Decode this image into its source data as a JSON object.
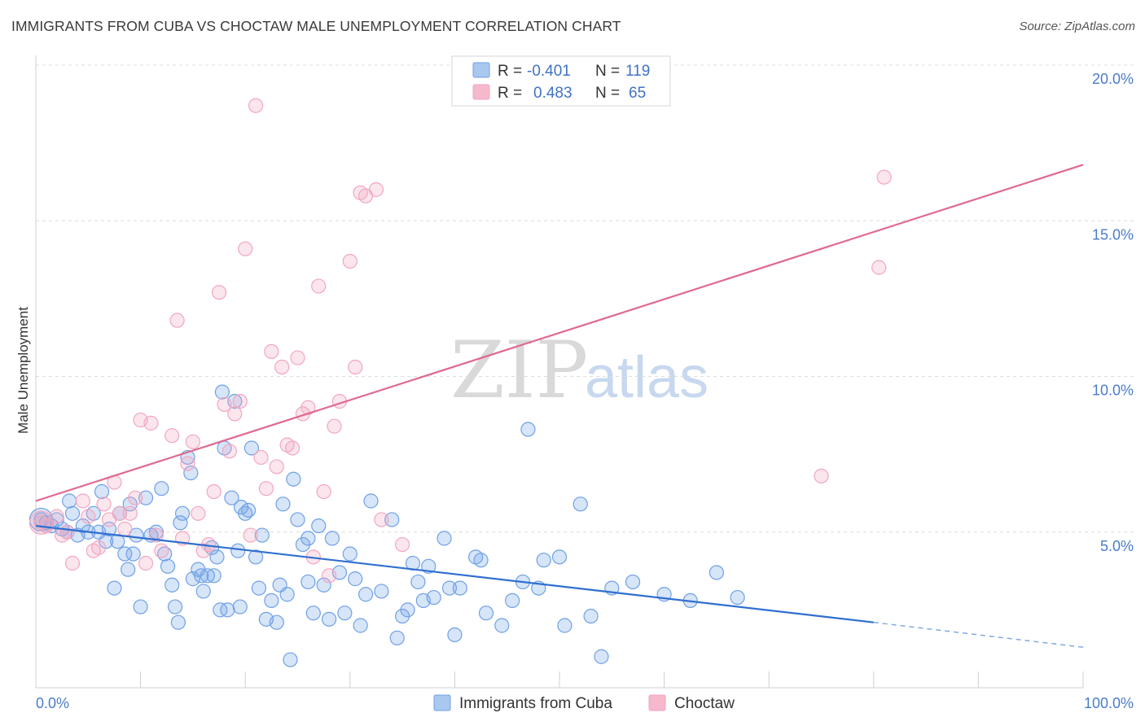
{
  "header": {
    "title": "IMMIGRANTS FROM CUBA VS CHOCTAW MALE UNEMPLOYMENT CORRELATION CHART",
    "source": "Source: ZipAtlas.com"
  },
  "watermark": {
    "zip": "ZIP",
    "atlas": "atlas"
  },
  "legend": {
    "rows": [
      {
        "r_label": "R =",
        "r_value": "-0.401",
        "n_label": "N =",
        "n_value": "119",
        "color": "#a9c8f0"
      },
      {
        "r_label": "R =",
        "r_value": "0.483",
        "n_label": "N =",
        "n_value": "65",
        "color": "#f6b8cb"
      }
    ]
  },
  "chart_data": {
    "type": "scatter",
    "title": "IMMIGRANTS FROM CUBA VS CHOCTAW MALE UNEMPLOYMENT CORRELATION CHART",
    "xlabel": "",
    "ylabel": "Male Unemployment",
    "xlim": [
      0,
      100
    ],
    "ylim": [
      0,
      20
    ],
    "x_tick_labels": [
      "0.0%",
      "100.0%"
    ],
    "y_tick_labels": [
      "5.0%",
      "10.0%",
      "15.0%",
      "20.0%"
    ],
    "y_tick_values": [
      5,
      10,
      15,
      20
    ],
    "grid": "horizontal dashed",
    "legend_position": "bottom-center",
    "series": [
      {
        "name": "Immigrants from Cuba",
        "color": "#6fa1e6",
        "line_color": "#2f6fd0",
        "trend": {
          "x": [
            0,
            80
          ],
          "y": [
            5.2,
            2.1
          ],
          "extended_to": [
            100,
            1.3
          ]
        },
        "points": [
          [
            0.5,
            5.4
          ],
          [
            1,
            5.3
          ],
          [
            1.5,
            5.2
          ],
          [
            2,
            5.4
          ],
          [
            2.5,
            5.1
          ],
          [
            3,
            5.0
          ],
          [
            3.5,
            5.6
          ],
          [
            3.2,
            6.0
          ],
          [
            4,
            4.9
          ],
          [
            4.5,
            5.2
          ],
          [
            5,
            5.0
          ],
          [
            5.5,
            5.6
          ],
          [
            6,
            5.0
          ],
          [
            6.3,
            6.3
          ],
          [
            6.7,
            4.7
          ],
          [
            7,
            5.1
          ],
          [
            7.5,
            3.2
          ],
          [
            7.8,
            4.7
          ],
          [
            8,
            5.6
          ],
          [
            8.5,
            4.3
          ],
          [
            8.8,
            3.8
          ],
          [
            9,
            5.9
          ],
          [
            9.3,
            4.3
          ],
          [
            9.6,
            4.9
          ],
          [
            10,
            2.6
          ],
          [
            10.5,
            6.1
          ],
          [
            11,
            4.9
          ],
          [
            11.5,
            5.0
          ],
          [
            12,
            6.4
          ],
          [
            12.3,
            4.3
          ],
          [
            12.6,
            3.9
          ],
          [
            13,
            3.3
          ],
          [
            13.3,
            2.6
          ],
          [
            13.6,
            2.1
          ],
          [
            13.8,
            5.3
          ],
          [
            14,
            5.6
          ],
          [
            14.5,
            7.4
          ],
          [
            14.8,
            6.9
          ],
          [
            15,
            3.5
          ],
          [
            15.5,
            3.8
          ],
          [
            15.8,
            3.6
          ],
          [
            16,
            3.1
          ],
          [
            16.4,
            3.6
          ],
          [
            16.8,
            4.5
          ],
          [
            17,
            3.6
          ],
          [
            17.3,
            4.2
          ],
          [
            17.6,
            2.5
          ],
          [
            17.8,
            9.5
          ],
          [
            18,
            7.7
          ],
          [
            18.3,
            2.5
          ],
          [
            18.7,
            6.1
          ],
          [
            19,
            9.2
          ],
          [
            19.3,
            4.4
          ],
          [
            19.6,
            5.8
          ],
          [
            20,
            5.6
          ],
          [
            20.3,
            5.7
          ],
          [
            20.6,
            7.7
          ],
          [
            21,
            4.2
          ],
          [
            21.3,
            3.2
          ],
          [
            21.6,
            4.9
          ],
          [
            22,
            2.2
          ],
          [
            22.5,
            2.8
          ],
          [
            23,
            2.1
          ],
          [
            23.3,
            3.3
          ],
          [
            23.6,
            5.9
          ],
          [
            24,
            3.0
          ],
          [
            24.3,
            0.9
          ],
          [
            24.6,
            6.7
          ],
          [
            25,
            5.4
          ],
          [
            25.5,
            4.6
          ],
          [
            26,
            4.8
          ],
          [
            26.5,
            2.4
          ],
          [
            27,
            5.2
          ],
          [
            27.5,
            3.3
          ],
          [
            28,
            2.2
          ],
          [
            28.3,
            4.8
          ],
          [
            29,
            3.7
          ],
          [
            29.5,
            2.4
          ],
          [
            30,
            4.3
          ],
          [
            30.5,
            3.5
          ],
          [
            31,
            2.0
          ],
          [
            32,
            6.0
          ],
          [
            33,
            3.1
          ],
          [
            34,
            5.4
          ],
          [
            34.5,
            1.6
          ],
          [
            35,
            2.3
          ],
          [
            35.5,
            2.5
          ],
          [
            36,
            4.0
          ],
          [
            37,
            2.8
          ],
          [
            37.5,
            3.9
          ],
          [
            38,
            2.9
          ],
          [
            39,
            4.8
          ],
          [
            39.5,
            3.2
          ],
          [
            40,
            1.7
          ],
          [
            40.5,
            3.2
          ],
          [
            42,
            4.2
          ],
          [
            42.5,
            4.1
          ],
          [
            43,
            2.4
          ],
          [
            44.5,
            2.0
          ],
          [
            45.5,
            2.8
          ],
          [
            46.5,
            3.4
          ],
          [
            47,
            8.3
          ],
          [
            48,
            3.2
          ],
          [
            48.5,
            4.1
          ],
          [
            50,
            4.2
          ],
          [
            50.5,
            2.0
          ],
          [
            52,
            5.9
          ],
          [
            53,
            2.3
          ],
          [
            54,
            1.0
          ],
          [
            55,
            3.2
          ],
          [
            57,
            3.4
          ],
          [
            60,
            3.0
          ],
          [
            62.5,
            2.8
          ],
          [
            65,
            3.7
          ],
          [
            67,
            2.9
          ],
          [
            19.5,
            2.6
          ],
          [
            26,
            3.4
          ],
          [
            31.5,
            3.0
          ],
          [
            36.5,
            3.4
          ]
        ]
      },
      {
        "name": "Choctaw",
        "color": "#f2a6bf",
        "line_color": "#e0698f",
        "trend": {
          "x": [
            0,
            100
          ],
          "y": [
            6.0,
            16.8
          ]
        },
        "points": [
          [
            0.5,
            5.3
          ],
          [
            1,
            5.2
          ],
          [
            2,
            5.5
          ],
          [
            2.5,
            4.9
          ],
          [
            3,
            5.0
          ],
          [
            3.5,
            4.0
          ],
          [
            4.5,
            6.0
          ],
          [
            5,
            5.5
          ],
          [
            5.5,
            4.4
          ],
          [
            6,
            4.5
          ],
          [
            6.5,
            5.9
          ],
          [
            7,
            5.4
          ],
          [
            7.5,
            6.6
          ],
          [
            8,
            5.6
          ],
          [
            8.5,
            5.1
          ],
          [
            9,
            5.6
          ],
          [
            9.5,
            6.1
          ],
          [
            10,
            8.6
          ],
          [
            10.5,
            4.0
          ],
          [
            11,
            8.5
          ],
          [
            11.5,
            4.9
          ],
          [
            12,
            4.4
          ],
          [
            13,
            8.1
          ],
          [
            13.5,
            11.8
          ],
          [
            14,
            4.8
          ],
          [
            14.5,
            7.2
          ],
          [
            15,
            7.9
          ],
          [
            15.5,
            5.6
          ],
          [
            16,
            4.4
          ],
          [
            16.5,
            4.6
          ],
          [
            17,
            6.3
          ],
          [
            17.5,
            12.7
          ],
          [
            18,
            9.1
          ],
          [
            18.5,
            7.6
          ],
          [
            19,
            8.8
          ],
          [
            19.5,
            9.2
          ],
          [
            20,
            14.1
          ],
          [
            20.5,
            4.9
          ],
          [
            21,
            18.7
          ],
          [
            21.5,
            7.4
          ],
          [
            22,
            6.4
          ],
          [
            22.5,
            10.8
          ],
          [
            23,
            7.1
          ],
          [
            23.5,
            10.3
          ],
          [
            24,
            7.8
          ],
          [
            24.5,
            7.7
          ],
          [
            25,
            10.6
          ],
          [
            25.5,
            8.8
          ],
          [
            26,
            9.0
          ],
          [
            26.5,
            4.2
          ],
          [
            27,
            12.9
          ],
          [
            27.5,
            6.3
          ],
          [
            28,
            3.6
          ],
          [
            28.5,
            8.4
          ],
          [
            29,
            9.2
          ],
          [
            30,
            13.7
          ],
          [
            30.5,
            10.3
          ],
          [
            31,
            15.9
          ],
          [
            31.5,
            15.8
          ],
          [
            32.5,
            16.0
          ],
          [
            33,
            5.4
          ],
          [
            35,
            4.6
          ],
          [
            75,
            6.8
          ],
          [
            80.5,
            13.5
          ],
          [
            81,
            16.4
          ]
        ]
      }
    ]
  },
  "bottom_legend": {
    "items": [
      {
        "label": "Immigrants from Cuba",
        "color": "#a9c8f0"
      },
      {
        "label": "Choctaw",
        "color": "#f6b8cb"
      }
    ]
  }
}
